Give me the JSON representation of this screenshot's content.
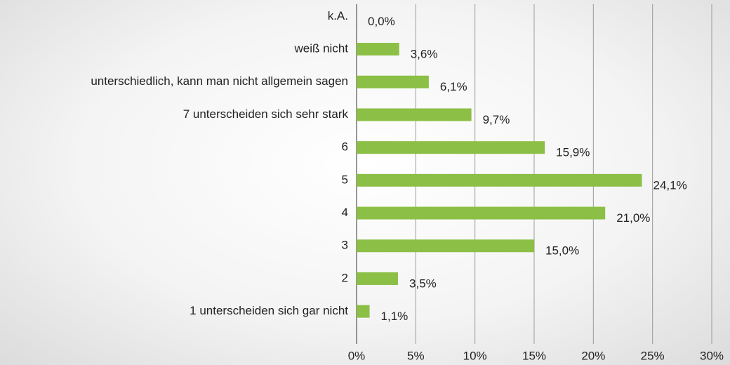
{
  "chart_data": {
    "type": "bar",
    "orientation": "horizontal",
    "categories": [
      "k.A.",
      "weiß nicht",
      "unterschiedlich, kann man nicht allgemein sagen",
      "7 unterscheiden sich sehr stark",
      "6",
      "5",
      "4",
      "3",
      "2",
      "1 unterscheiden sich gar nicht"
    ],
    "values": [
      0.0,
      3.6,
      6.1,
      9.7,
      15.9,
      24.1,
      21.0,
      15.0,
      3.5,
      1.1
    ],
    "value_labels": [
      "0,0%",
      "3,6%",
      "6,1%",
      "9,7%",
      "15,9%",
      "24,1%",
      "21,0%",
      "15,0%",
      "3,5%",
      "1,1%"
    ],
    "color": "#8cbf45",
    "xlim": [
      0,
      30
    ],
    "xticks": [
      {
        "value": 0,
        "label": "0%"
      },
      {
        "value": 5,
        "label": "5%"
      },
      {
        "value": 10,
        "label": "10%"
      },
      {
        "value": 15,
        "label": "15%"
      },
      {
        "value": 20,
        "label": "20%"
      },
      {
        "value": 25,
        "label": "25%"
      },
      {
        "value": 30,
        "label": "30%"
      }
    ],
    "grid": true
  }
}
